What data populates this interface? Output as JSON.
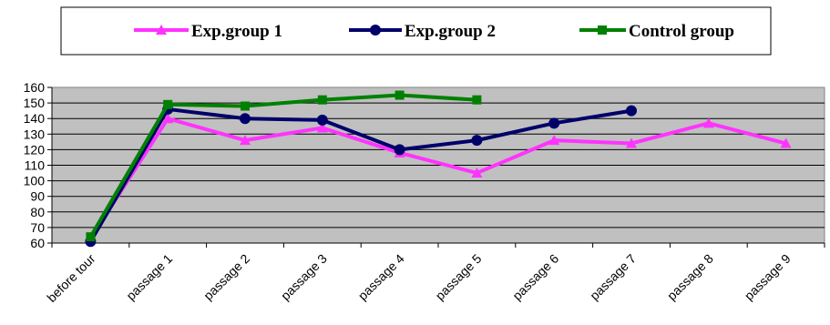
{
  "chart_data": {
    "type": "line",
    "categories": [
      "before tour",
      "passage 1",
      "passage 2",
      "passage 3",
      "passage 4",
      "passage 5",
      "passage 6",
      "passage 7",
      "passage 8",
      "passage 9"
    ],
    "series": [
      {
        "name": "Exp.group 1",
        "color": "#ff33ff",
        "marker": "triangle",
        "values": [
          63,
          140,
          126,
          134,
          118,
          105,
          126,
          124,
          137,
          124
        ]
      },
      {
        "name": "Exp.group 2",
        "color": "#00006b",
        "marker": "circle",
        "values": [
          61,
          146,
          140,
          139,
          120,
          126,
          137,
          145,
          null,
          null
        ]
      },
      {
        "name": "Control group",
        "color": "#008000",
        "marker": "square",
        "values": [
          64,
          149,
          148,
          152,
          155,
          152,
          null,
          null,
          null,
          null
        ]
      }
    ],
    "yticks": [
      60,
      70,
      80,
      90,
      100,
      110,
      120,
      130,
      140,
      150,
      160
    ],
    "ylim": [
      60,
      160
    ],
    "grid": true,
    "plot_background": "#c0c0c0",
    "legend_position": "top"
  }
}
